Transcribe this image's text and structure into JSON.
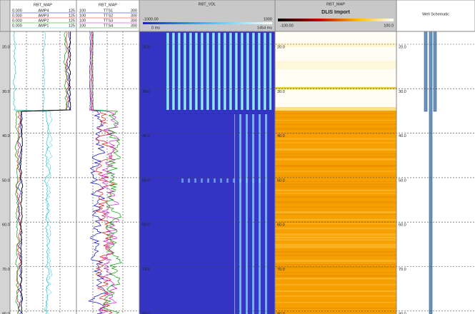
{
  "depth_labels": [
    "20.0",
    "30.0",
    "40.0",
    "50.0",
    "60.0",
    "70.0",
    "80.0"
  ],
  "tracks": [
    {
      "title": "RBT_MAP",
      "scales": [
        {
          "min": "0.000",
          "name": "AMP4",
          "max": "125",
          "color": "#1010d0"
        },
        {
          "min": "0.000",
          "name": "AMP3",
          "max": "125",
          "color": "#e02020"
        },
        {
          "min": "0.000",
          "name": "AMP2",
          "max": "125",
          "color": "#10a010"
        },
        {
          "min": "0.000",
          "name": "AMP1",
          "max": "125",
          "color": "#20c8d8"
        }
      ]
    },
    {
      "title": "RBT_MAP",
      "scales": [
        {
          "min": "100",
          "name": "TTS1",
          "max": "300",
          "color": "#1010d0"
        },
        {
          "min": "100",
          "name": "TTS2",
          "max": "300",
          "color": "#e02020"
        },
        {
          "min": "100",
          "name": "TTS3",
          "max": "300",
          "color": "#d020d0"
        },
        {
          "min": "100",
          "name": "TTS4",
          "max": "300",
          "color": "#10a010"
        }
      ]
    },
    {
      "title": "RBT_VDL",
      "range": [
        "-1000.00",
        "1000"
      ],
      "time": [
        "0 ms",
        "1454 ms"
      ]
    },
    {
      "title": "RBT_MAP",
      "subtitle": "DLIS Import",
      "range": [
        "-100.00",
        "100.0"
      ]
    },
    {
      "title": "Well Schematic"
    }
  ]
}
